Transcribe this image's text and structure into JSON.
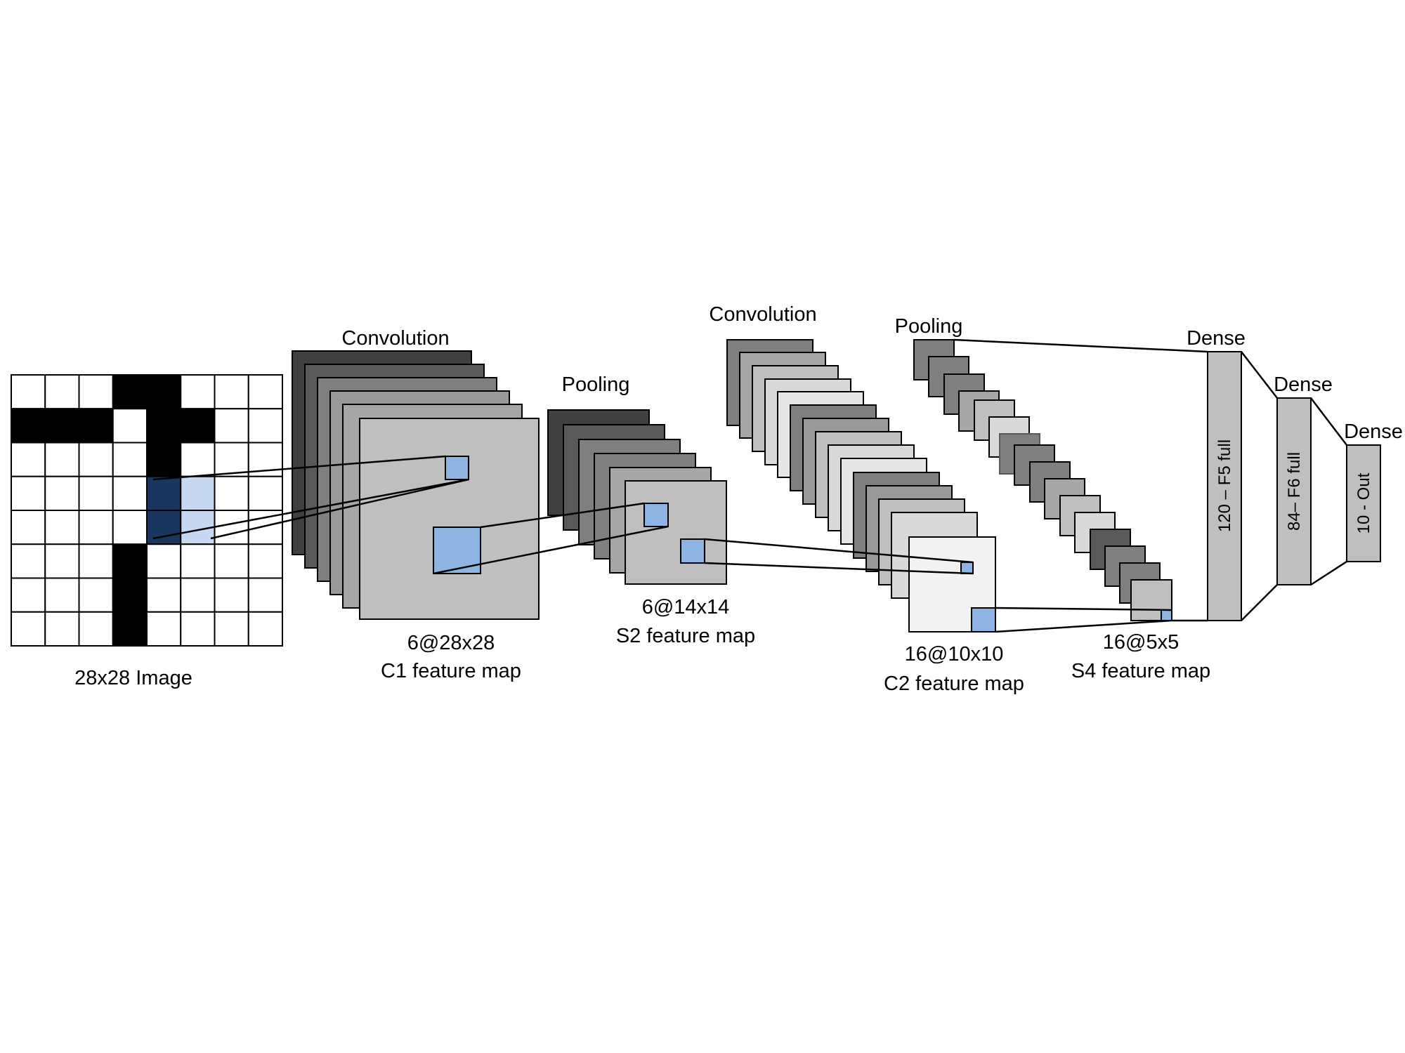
{
  "input": {
    "caption": "28x28 Image",
    "pixels": [
      [
        0,
        0,
        0,
        1,
        1,
        0,
        0,
        0
      ],
      [
        1,
        1,
        1,
        0,
        1,
        1,
        0,
        0
      ],
      [
        0,
        0,
        0,
        0,
        1,
        0,
        0,
        0
      ],
      [
        0,
        0,
        0,
        0,
        2,
        3,
        0,
        0
      ],
      [
        0,
        0,
        0,
        0,
        2,
        3,
        0,
        0
      ],
      [
        0,
        0,
        0,
        1,
        0,
        0,
        0,
        0
      ],
      [
        0,
        0,
        0,
        1,
        0,
        0,
        0,
        0
      ],
      [
        0,
        0,
        0,
        1,
        0,
        0,
        0,
        0
      ]
    ]
  },
  "stages": {
    "c1": {
      "op_label": "Convolution",
      "size_label": "6@28x28",
      "name_label": "C1 feature map"
    },
    "s2": {
      "op_label": "Pooling",
      "size_label": "6@14x14",
      "name_label": "S2 feature map"
    },
    "c2": {
      "op_label": "Convolution",
      "size_label": "16@10x10",
      "name_label": "C2 feature map"
    },
    "s4": {
      "op_label": "Pooling",
      "size_label": "16@5x5",
      "name_label": "S4 feature map"
    },
    "f5": {
      "op_label": "Dense",
      "layer_label": "120 – F5 full"
    },
    "f6": {
      "op_label": "Dense",
      "layer_label": "84– F6 full"
    },
    "out": {
      "op_label": "Dense",
      "layer_label": "10 - Out"
    }
  },
  "colors": {
    "pixel_on": "#000000",
    "pixel_off": "#ffffff",
    "kernel_dark": "#17375e",
    "kernel_light": "#c6d9f1",
    "patch": "#8eb4e3",
    "fc_layer": "#bfbfbf",
    "outline": "#000000"
  }
}
